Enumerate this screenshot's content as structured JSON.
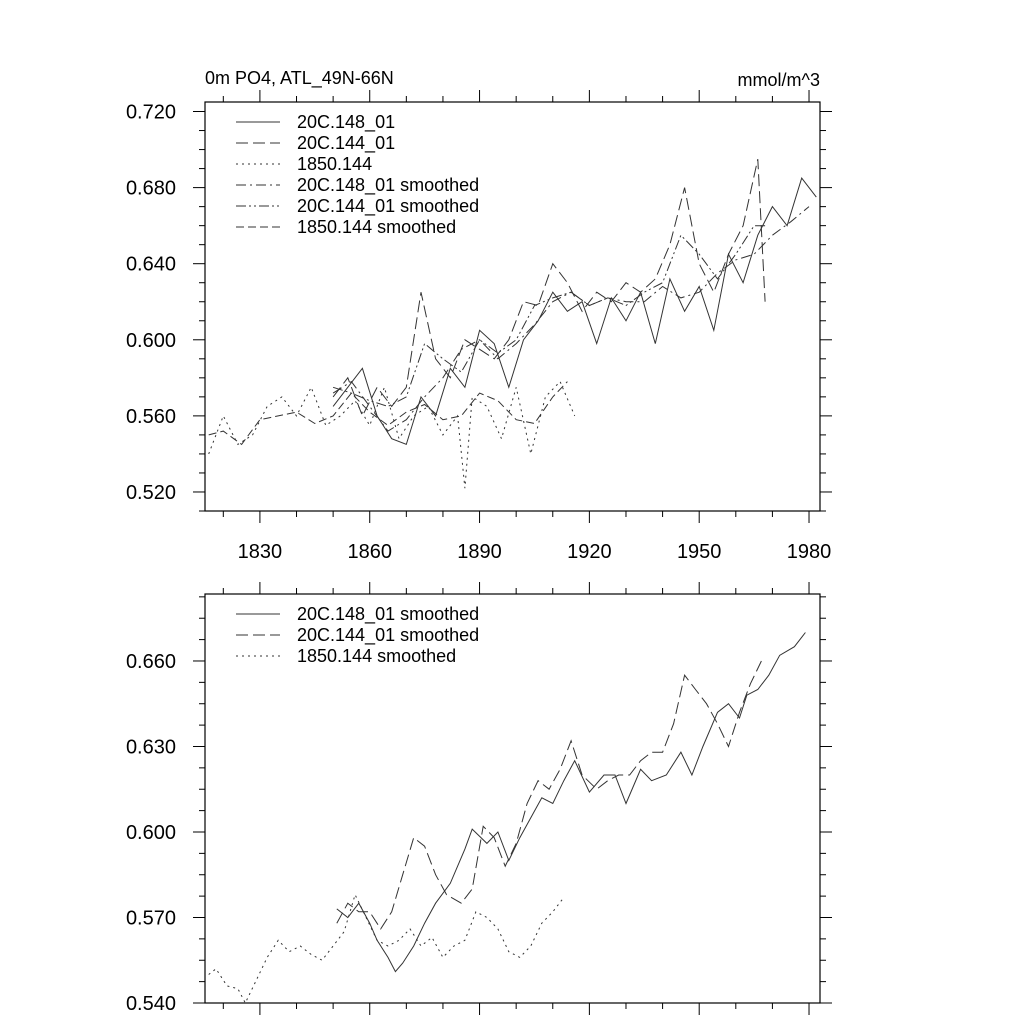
{
  "chart_data": [
    {
      "type": "line",
      "title": "0m PO4, ATL_49N-66N",
      "title_right": "mmol/m^3",
      "xlim": [
        1815,
        1983
      ],
      "ylim": [
        0.51,
        0.725
      ],
      "x_ticks": [
        1830,
        1860,
        1890,
        1920,
        1950,
        1980
      ],
      "y_ticks": [
        0.52,
        0.56,
        0.6,
        0.64,
        0.68,
        0.72
      ],
      "y_tick_labels": [
        "0.520",
        "0.560",
        "0.600",
        "0.640",
        "0.680",
        "0.720"
      ],
      "legend_position": "top-left",
      "series": [
        {
          "name": "20C.148_01",
          "dash": "solid",
          "x": [
            1850,
            1854,
            1858,
            1862,
            1866,
            1870,
            1874,
            1878,
            1882,
            1886,
            1890,
            1894,
            1898,
            1902,
            1906,
            1910,
            1914,
            1918,
            1922,
            1926,
            1930,
            1934,
            1938,
            1942,
            1946,
            1950,
            1954,
            1958,
            1962,
            1966,
            1970,
            1974,
            1978,
            1982
          ],
          "y": [
            0.565,
            0.575,
            0.585,
            0.56,
            0.548,
            0.545,
            0.57,
            0.56,
            0.585,
            0.575,
            0.605,
            0.598,
            0.575,
            0.6,
            0.61,
            0.625,
            0.615,
            0.62,
            0.598,
            0.622,
            0.61,
            0.625,
            0.598,
            0.632,
            0.615,
            0.628,
            0.605,
            0.645,
            0.63,
            0.655,
            0.67,
            0.66,
            0.685,
            0.675
          ]
        },
        {
          "name": "20C.144_01",
          "dash": "long",
          "x": [
            1850,
            1854,
            1858,
            1862,
            1866,
            1870,
            1874,
            1878,
            1882,
            1886,
            1890,
            1894,
            1898,
            1902,
            1906,
            1910,
            1914,
            1918,
            1922,
            1926,
            1930,
            1934,
            1938,
            1942,
            1946,
            1950,
            1954,
            1958,
            1962,
            1966,
            1968
          ],
          "y": [
            0.57,
            0.58,
            0.56,
            0.575,
            0.565,
            0.575,
            0.625,
            0.59,
            0.58,
            0.6,
            0.595,
            0.59,
            0.6,
            0.62,
            0.618,
            0.64,
            0.63,
            0.615,
            0.625,
            0.62,
            0.63,
            0.625,
            0.632,
            0.65,
            0.68,
            0.64,
            0.625,
            0.645,
            0.66,
            0.695,
            0.62
          ]
        },
        {
          "name": "1850.144",
          "dash": "dot",
          "x": [
            1816,
            1820,
            1824,
            1828,
            1832,
            1836,
            1840,
            1844,
            1848,
            1852,
            1856,
            1860,
            1864,
            1868,
            1872,
            1876,
            1880,
            1884,
            1886,
            1888,
            1892,
            1896,
            1900,
            1904,
            1908,
            1912,
            1916
          ],
          "y": [
            0.54,
            0.56,
            0.545,
            0.55,
            0.565,
            0.57,
            0.56,
            0.575,
            0.555,
            0.56,
            0.568,
            0.555,
            0.575,
            0.548,
            0.56,
            0.565,
            0.55,
            0.56,
            0.522,
            0.57,
            0.565,
            0.548,
            0.575,
            0.54,
            0.57,
            0.578,
            0.56
          ]
        },
        {
          "name": "20C.148_01 smoothed",
          "dash": "dashdot",
          "x": [
            1850,
            1855,
            1860,
            1865,
            1870,
            1875,
            1880,
            1885,
            1890,
            1895,
            1900,
            1905,
            1910,
            1915,
            1920,
            1925,
            1930,
            1935,
            1940,
            1945,
            1950,
            1955,
            1960,
            1965,
            1970,
            1975,
            1980
          ],
          "y": [
            0.572,
            0.578,
            0.565,
            0.552,
            0.558,
            0.57,
            0.58,
            0.595,
            0.6,
            0.59,
            0.598,
            0.608,
            0.62,
            0.625,
            0.618,
            0.622,
            0.62,
            0.62,
            0.628,
            0.622,
            0.625,
            0.635,
            0.642,
            0.645,
            0.655,
            0.662,
            0.67
          ]
        },
        {
          "name": "20C.144_01 smoothed",
          "dash": "dashdotdot",
          "x": [
            1850,
            1855,
            1860,
            1865,
            1870,
            1875,
            1880,
            1885,
            1890,
            1895,
            1900,
            1905,
            1910,
            1915,
            1920,
            1925,
            1930,
            1935,
            1940,
            1945,
            1950,
            1955,
            1960,
            1965,
            1968
          ],
          "y": [
            0.575,
            0.572,
            0.568,
            0.565,
            0.57,
            0.598,
            0.59,
            0.583,
            0.6,
            0.593,
            0.6,
            0.618,
            0.622,
            0.625,
            0.618,
            0.622,
            0.618,
            0.625,
            0.63,
            0.655,
            0.645,
            0.632,
            0.645,
            0.66,
            0.66
          ]
        },
        {
          "name": "1850.144 smoothed",
          "dash": "medium",
          "x": [
            1816,
            1820,
            1825,
            1830,
            1835,
            1840,
            1845,
            1850,
            1855,
            1860,
            1865,
            1870,
            1875,
            1880,
            1885,
            1890,
            1895,
            1900,
            1905,
            1910,
            1914
          ],
          "y": [
            0.55,
            0.552,
            0.545,
            0.558,
            0.56,
            0.562,
            0.556,
            0.56,
            0.572,
            0.562,
            0.555,
            0.562,
            0.566,
            0.558,
            0.56,
            0.572,
            0.568,
            0.558,
            0.556,
            0.57,
            0.578
          ]
        }
      ]
    },
    {
      "type": "line",
      "xlim": [
        1815,
        1983
      ],
      "ylim": [
        0.54,
        0.6835
      ],
      "x_ticks": [
        1830,
        1860,
        1890,
        1920,
        1950,
        1980
      ],
      "y_ticks": [
        0.54,
        0.57,
        0.6,
        0.63,
        0.66
      ],
      "y_tick_labels": [
        "0.540",
        "0.570",
        "0.600",
        "0.630",
        "0.660"
      ],
      "legend_position": "top-left",
      "series": [
        {
          "name": "20C.148_01 smoothed",
          "dash": "solid",
          "x": [
            1851,
            1854,
            1857,
            1860,
            1862,
            1865,
            1867,
            1869,
            1872,
            1875,
            1878,
            1882,
            1886,
            1888,
            1892,
            1895,
            1898,
            1901,
            1904,
            1907,
            1910,
            1913,
            1916,
            1920,
            1924,
            1927,
            1930,
            1934,
            1937,
            1941,
            1945,
            1948,
            1951,
            1955,
            1958,
            1961,
            1963,
            1966,
            1969,
            1972,
            1976,
            1979
          ],
          "y": [
            0.573,
            0.57,
            0.575,
            0.568,
            0.562,
            0.556,
            0.551,
            0.554,
            0.56,
            0.568,
            0.575,
            0.582,
            0.594,
            0.601,
            0.596,
            0.6,
            0.59,
            0.598,
            0.605,
            0.612,
            0.61,
            0.618,
            0.625,
            0.614,
            0.62,
            0.62,
            0.61,
            0.622,
            0.618,
            0.62,
            0.628,
            0.62,
            0.63,
            0.642,
            0.645,
            0.64,
            0.648,
            0.65,
            0.655,
            0.662,
            0.665,
            0.67
          ]
        },
        {
          "name": "20C.144_01 smoothed",
          "dash": "long",
          "x": [
            1851,
            1854,
            1857,
            1860,
            1863,
            1866,
            1869,
            1872,
            1875,
            1878,
            1881,
            1885,
            1888,
            1891,
            1894,
            1897,
            1900,
            1903,
            1906,
            1909,
            1912,
            1915,
            1918,
            1922,
            1925,
            1928,
            1931,
            1934,
            1937,
            1940,
            1943,
            1946,
            1949,
            1952,
            1955,
            1958,
            1961,
            1964,
            1967
          ],
          "y": [
            0.568,
            0.575,
            0.572,
            0.572,
            0.566,
            0.572,
            0.585,
            0.598,
            0.595,
            0.585,
            0.578,
            0.575,
            0.58,
            0.602,
            0.598,
            0.588,
            0.596,
            0.61,
            0.618,
            0.615,
            0.622,
            0.632,
            0.62,
            0.615,
            0.618,
            0.62,
            0.62,
            0.625,
            0.628,
            0.628,
            0.638,
            0.655,
            0.65,
            0.645,
            0.638,
            0.63,
            0.642,
            0.652,
            0.66
          ]
        },
        {
          "name": "1850.144 smoothed",
          "dash": "dot",
          "x": [
            1816,
            1818,
            1821,
            1824,
            1826,
            1829,
            1832,
            1835,
            1838,
            1841,
            1844,
            1847,
            1850,
            1853,
            1856,
            1859,
            1862,
            1865,
            1868,
            1871,
            1874,
            1877,
            1880,
            1883,
            1886,
            1889,
            1892,
            1895,
            1898,
            1901,
            1904,
            1907,
            1910,
            1913
          ],
          "y": [
            0.55,
            0.552,
            0.546,
            0.545,
            0.54,
            0.548,
            0.556,
            0.562,
            0.558,
            0.56,
            0.557,
            0.555,
            0.56,
            0.565,
            0.578,
            0.57,
            0.562,
            0.56,
            0.562,
            0.566,
            0.56,
            0.563,
            0.556,
            0.56,
            0.562,
            0.572,
            0.57,
            0.566,
            0.558,
            0.556,
            0.56,
            0.568,
            0.572,
            0.577
          ]
        }
      ]
    }
  ]
}
